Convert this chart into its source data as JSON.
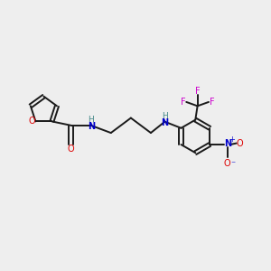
{
  "bg_color": "#eeeeee",
  "bond_color": "#1a1a1a",
  "oxygen_color": "#dd0000",
  "nitrogen_color": "#0000cc",
  "fluorine_color": "#cc00cc",
  "nh_color": "#448888",
  "figsize": [
    3.0,
    3.0
  ],
  "dpi": 100,
  "xlim": [
    0,
    10
  ],
  "ylim": [
    0,
    10
  ]
}
